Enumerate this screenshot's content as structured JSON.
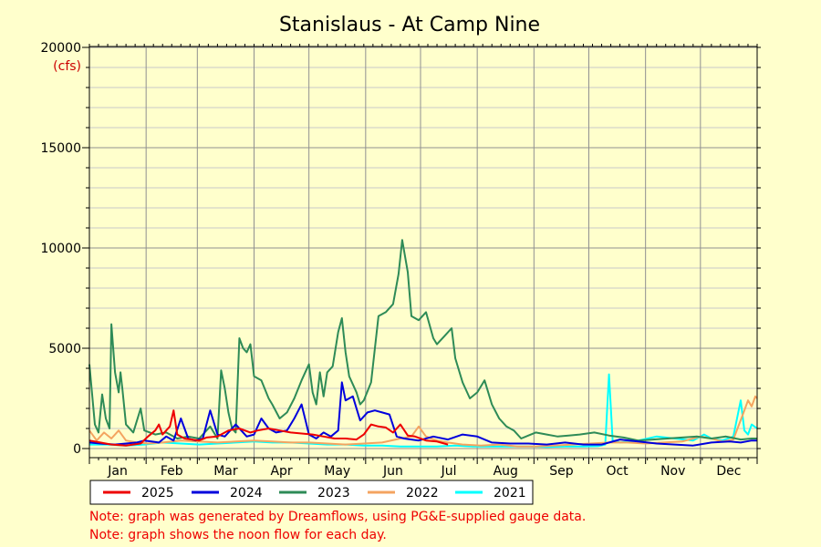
{
  "chart_data": {
    "type": "line",
    "title": "Stanislaus - At Camp Nine",
    "unit_label": "(cfs)",
    "ylim": [
      0,
      20000
    ],
    "yticks": [
      0,
      5000,
      10000,
      15000,
      20000
    ],
    "xlim": [
      0,
      365
    ],
    "month_starts": [
      0,
      31,
      59,
      90,
      120,
      151,
      181,
      212,
      243,
      273,
      304,
      334,
      365
    ],
    "month_labels": [
      "Jan",
      "Feb",
      "Mar",
      "Apr",
      "May",
      "Jun",
      "Jul",
      "Aug",
      "Sep",
      "Oct",
      "Nov",
      "Dec"
    ],
    "x_unit": "day of year",
    "grid": true,
    "legend_position": "bottom",
    "series": [
      {
        "name": "2025",
        "color": "#ee0000",
        "points": [
          [
            0,
            400
          ],
          [
            6,
            300
          ],
          [
            12,
            200
          ],
          [
            20,
            150
          ],
          [
            28,
            250
          ],
          [
            32,
            600
          ],
          [
            36,
            900
          ],
          [
            38,
            1200
          ],
          [
            40,
            700
          ],
          [
            44,
            1100
          ],
          [
            46,
            1900
          ],
          [
            48,
            700
          ],
          [
            52,
            500
          ],
          [
            60,
            400
          ],
          [
            64,
            550
          ],
          [
            70,
            600
          ],
          [
            76,
            900
          ],
          [
            82,
            1000
          ],
          [
            88,
            800
          ],
          [
            92,
            900
          ],
          [
            98,
            1000
          ],
          [
            104,
            900
          ],
          [
            110,
            800
          ],
          [
            116,
            750
          ],
          [
            122,
            700
          ],
          [
            128,
            600
          ],
          [
            134,
            500
          ],
          [
            140,
            500
          ],
          [
            146,
            450
          ],
          [
            150,
            700
          ],
          [
            154,
            1200
          ],
          [
            158,
            1100
          ],
          [
            162,
            1050
          ],
          [
            166,
            800
          ],
          [
            170,
            1200
          ],
          [
            174,
            650
          ],
          [
            178,
            600
          ],
          [
            184,
            400
          ],
          [
            190,
            350
          ],
          [
            196,
            200
          ]
        ]
      },
      {
        "name": "2024",
        "color": "#0000dd",
        "points": [
          [
            0,
            300
          ],
          [
            6,
            250
          ],
          [
            14,
            200
          ],
          [
            20,
            250
          ],
          [
            26,
            300
          ],
          [
            30,
            400
          ],
          [
            34,
            350
          ],
          [
            38,
            300
          ],
          [
            42,
            600
          ],
          [
            46,
            400
          ],
          [
            50,
            1500
          ],
          [
            54,
            500
          ],
          [
            58,
            400
          ],
          [
            62,
            500
          ],
          [
            66,
            1900
          ],
          [
            70,
            700
          ],
          [
            74,
            600
          ],
          [
            80,
            1200
          ],
          [
            86,
            600
          ],
          [
            90,
            700
          ],
          [
            94,
            1500
          ],
          [
            98,
            1000
          ],
          [
            102,
            800
          ],
          [
            108,
            900
          ],
          [
            112,
            1500
          ],
          [
            116,
            2200
          ],
          [
            120,
            700
          ],
          [
            124,
            500
          ],
          [
            128,
            800
          ],
          [
            132,
            600
          ],
          [
            136,
            900
          ],
          [
            138,
            3300
          ],
          [
            140,
            2400
          ],
          [
            144,
            2600
          ],
          [
            148,
            1400
          ],
          [
            152,
            1800
          ],
          [
            156,
            1900
          ],
          [
            160,
            1800
          ],
          [
            164,
            1700
          ],
          [
            168,
            600
          ],
          [
            172,
            500
          ],
          [
            180,
            400
          ],
          [
            188,
            600
          ],
          [
            196,
            450
          ],
          [
            204,
            700
          ],
          [
            212,
            600
          ],
          [
            220,
            300
          ],
          [
            230,
            250
          ],
          [
            240,
            250
          ],
          [
            250,
            200
          ],
          [
            260,
            300
          ],
          [
            270,
            200
          ],
          [
            280,
            200
          ],
          [
            290,
            450
          ],
          [
            300,
            350
          ],
          [
            310,
            250
          ],
          [
            320,
            200
          ],
          [
            330,
            150
          ],
          [
            340,
            300
          ],
          [
            350,
            350
          ],
          [
            356,
            300
          ],
          [
            362,
            400
          ],
          [
            365,
            400
          ]
        ]
      },
      {
        "name": "2023",
        "color": "#2e8b57",
        "points": [
          [
            0,
            4200
          ],
          [
            3,
            1200
          ],
          [
            5,
            800
          ],
          [
            7,
            2700
          ],
          [
            9,
            1500
          ],
          [
            11,
            1000
          ],
          [
            12,
            6200
          ],
          [
            14,
            3800
          ],
          [
            16,
            2800
          ],
          [
            17,
            3800
          ],
          [
            18,
            3000
          ],
          [
            20,
            1200
          ],
          [
            24,
            800
          ],
          [
            28,
            2000
          ],
          [
            30,
            900
          ],
          [
            36,
            700
          ],
          [
            42,
            800
          ],
          [
            48,
            500
          ],
          [
            54,
            600
          ],
          [
            60,
            500
          ],
          [
            64,
            900
          ],
          [
            66,
            1100
          ],
          [
            68,
            800
          ],
          [
            70,
            500
          ],
          [
            72,
            3900
          ],
          [
            74,
            3000
          ],
          [
            76,
            1800
          ],
          [
            78,
            1000
          ],
          [
            80,
            800
          ],
          [
            82,
            5500
          ],
          [
            84,
            5000
          ],
          [
            86,
            4800
          ],
          [
            88,
            5200
          ],
          [
            90,
            3600
          ],
          [
            94,
            3400
          ],
          [
            98,
            2500
          ],
          [
            100,
            2200
          ],
          [
            104,
            1500
          ],
          [
            108,
            1800
          ],
          [
            112,
            2500
          ],
          [
            116,
            3400
          ],
          [
            118,
            3800
          ],
          [
            120,
            4200
          ],
          [
            122,
            2800
          ],
          [
            124,
            2200
          ],
          [
            126,
            3800
          ],
          [
            128,
            2600
          ],
          [
            130,
            3800
          ],
          [
            133,
            4100
          ],
          [
            136,
            5800
          ],
          [
            138,
            6500
          ],
          [
            140,
            4800
          ],
          [
            142,
            3600
          ],
          [
            144,
            3200
          ],
          [
            146,
            2800
          ],
          [
            148,
            2200
          ],
          [
            150,
            2400
          ],
          [
            154,
            3300
          ],
          [
            158,
            6600
          ],
          [
            162,
            6800
          ],
          [
            166,
            7200
          ],
          [
            169,
            8700
          ],
          [
            171,
            10400
          ],
          [
            174,
            8800
          ],
          [
            176,
            6600
          ],
          [
            180,
            6400
          ],
          [
            184,
            6800
          ],
          [
            188,
            5500
          ],
          [
            190,
            5200
          ],
          [
            194,
            5600
          ],
          [
            198,
            6000
          ],
          [
            200,
            4500
          ],
          [
            204,
            3300
          ],
          [
            208,
            2500
          ],
          [
            212,
            2800
          ],
          [
            216,
            3400
          ],
          [
            220,
            2200
          ],
          [
            224,
            1500
          ],
          [
            228,
            1100
          ],
          [
            232,
            900
          ],
          [
            236,
            500
          ],
          [
            240,
            650
          ],
          [
            244,
            800
          ],
          [
            250,
            700
          ],
          [
            256,
            600
          ],
          [
            262,
            650
          ],
          [
            268,
            700
          ],
          [
            276,
            800
          ],
          [
            284,
            650
          ],
          [
            292,
            550
          ],
          [
            300,
            400
          ],
          [
            308,
            450
          ],
          [
            316,
            500
          ],
          [
            324,
            550
          ],
          [
            332,
            600
          ],
          [
            340,
            500
          ],
          [
            348,
            600
          ],
          [
            356,
            450
          ],
          [
            362,
            500
          ],
          [
            365,
            500
          ]
        ]
      },
      {
        "name": "2022",
        "color": "#f4a460",
        "points": [
          [
            0,
            900
          ],
          [
            4,
            400
          ],
          [
            8,
            800
          ],
          [
            12,
            500
          ],
          [
            16,
            900
          ],
          [
            20,
            400
          ],
          [
            26,
            300
          ],
          [
            32,
            250
          ],
          [
            40,
            300
          ],
          [
            50,
            400
          ],
          [
            60,
            350
          ],
          [
            70,
            300
          ],
          [
            80,
            350
          ],
          [
            90,
            400
          ],
          [
            100,
            350
          ],
          [
            110,
            300
          ],
          [
            120,
            300
          ],
          [
            130,
            250
          ],
          [
            140,
            200
          ],
          [
            150,
            250
          ],
          [
            160,
            300
          ],
          [
            170,
            500
          ],
          [
            176,
            600
          ],
          [
            180,
            1100
          ],
          [
            184,
            600
          ],
          [
            190,
            400
          ],
          [
            196,
            300
          ],
          [
            204,
            200
          ],
          [
            214,
            150
          ],
          [
            224,
            200
          ],
          [
            234,
            100
          ],
          [
            244,
            100
          ],
          [
            254,
            150
          ],
          [
            264,
            200
          ],
          [
            274,
            250
          ],
          [
            284,
            300
          ],
          [
            294,
            300
          ],
          [
            304,
            250
          ],
          [
            314,
            300
          ],
          [
            324,
            350
          ],
          [
            334,
            600
          ],
          [
            340,
            500
          ],
          [
            346,
            350
          ],
          [
            352,
            450
          ],
          [
            358,
            1900
          ],
          [
            360,
            2400
          ],
          [
            362,
            2100
          ],
          [
            364,
            2600
          ],
          [
            365,
            2500
          ]
        ]
      },
      {
        "name": "2021",
        "color": "#00ffff",
        "points": [
          [
            0,
            200
          ],
          [
            10,
            200
          ],
          [
            20,
            150
          ],
          [
            30,
            200
          ],
          [
            40,
            300
          ],
          [
            50,
            250
          ],
          [
            60,
            200
          ],
          [
            70,
            250
          ],
          [
            80,
            300
          ],
          [
            90,
            350
          ],
          [
            100,
            300
          ],
          [
            110,
            300
          ],
          [
            120,
            250
          ],
          [
            130,
            200
          ],
          [
            140,
            200
          ],
          [
            150,
            150
          ],
          [
            160,
            150
          ],
          [
            170,
            100
          ],
          [
            180,
            100
          ],
          [
            190,
            100
          ],
          [
            200,
            150
          ],
          [
            210,
            100
          ],
          [
            220,
            100
          ],
          [
            230,
            100
          ],
          [
            240,
            100
          ],
          [
            250,
            80
          ],
          [
            260,
            100
          ],
          [
            270,
            100
          ],
          [
            278,
            120
          ],
          [
            282,
            200
          ],
          [
            284,
            3700
          ],
          [
            286,
            400
          ],
          [
            290,
            300
          ],
          [
            300,
            400
          ],
          [
            310,
            600
          ],
          [
            320,
            500
          ],
          [
            330,
            400
          ],
          [
            336,
            700
          ],
          [
            340,
            500
          ],
          [
            346,
            400
          ],
          [
            352,
            600
          ],
          [
            356,
            2400
          ],
          [
            358,
            900
          ],
          [
            360,
            700
          ],
          [
            362,
            1200
          ],
          [
            365,
            1000
          ]
        ]
      }
    ]
  },
  "notes": [
    "Note: graph was generated by Dreamflows, using PG&E-supplied gauge data.",
    "Note: graph shows the noon flow for each day."
  ]
}
